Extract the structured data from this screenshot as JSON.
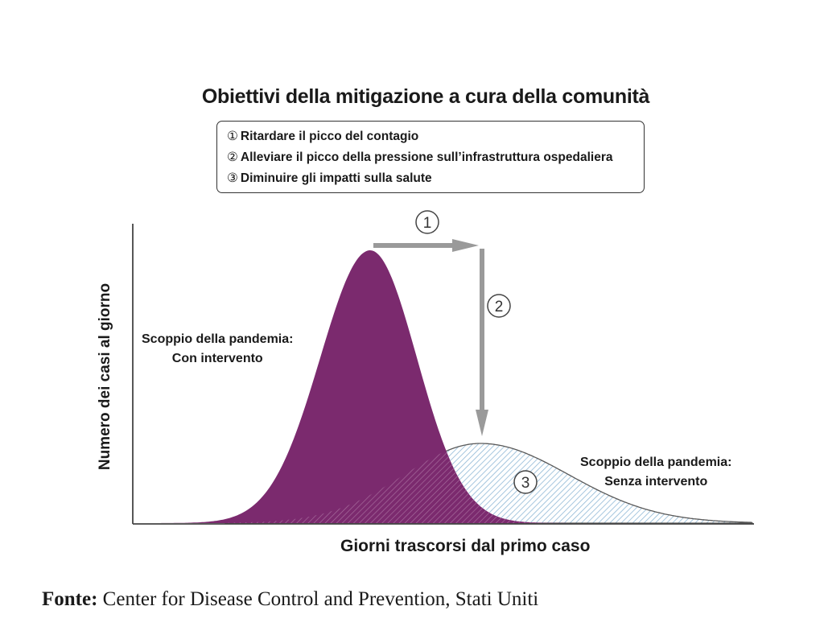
{
  "title": "Obiettivi della mitigazione a cura della comunità",
  "legend": [
    {
      "num": "①",
      "text": "Ritardare il picco del contagio"
    },
    {
      "num": "②",
      "text": "Alleviare il picco della pressione sull’infrastruttura ospedaliera"
    },
    {
      "num": "③",
      "text": "Diminuire gli impatti sulla salute"
    }
  ],
  "axes": {
    "ylabel": "Numero dei casi al giorno",
    "xlabel": "Giorni trascorsi dal primo caso"
  },
  "annotations": {
    "with_intervention": [
      "Scoppio della pandemia:",
      "Con intervento"
    ],
    "without_intervention": [
      "Scoppio della pandemia:",
      "Senza intervento"
    ],
    "marker_1": "1",
    "marker_2": "2",
    "marker_3": "3"
  },
  "colors": {
    "purple_curve": "#7b2a6e",
    "hatched_curve_stroke": "#8fb8d6",
    "arrow": "#9a9a9a"
  },
  "source": {
    "label": "Fonte:",
    "text": "Center for Disease Control and Prevention, Stati Uniti"
  }
}
